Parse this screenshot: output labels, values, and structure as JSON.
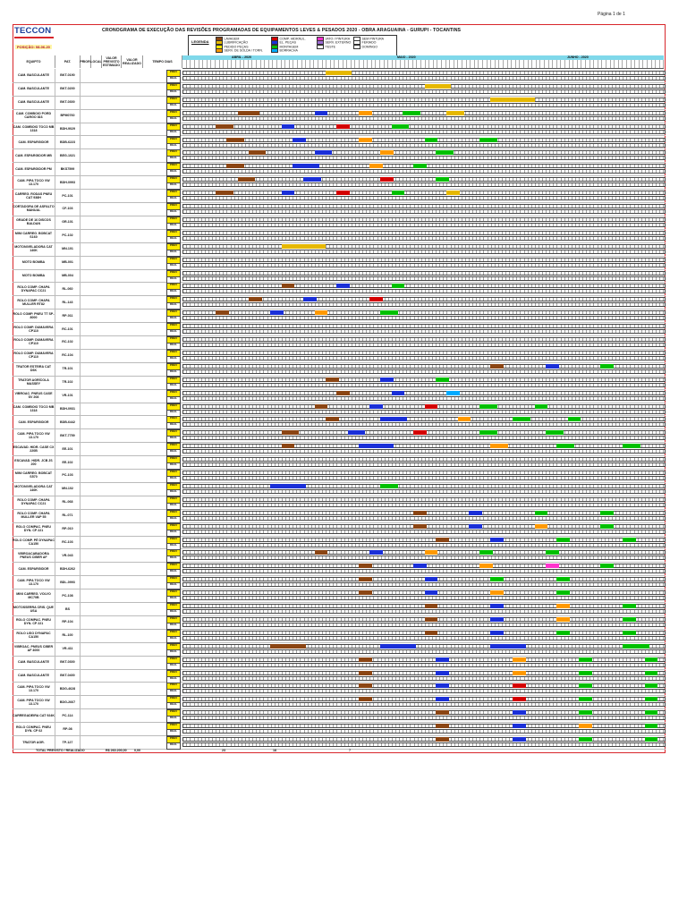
{
  "page_label": "Página 1 de 1",
  "brand": {
    "name": "TECCON"
  },
  "title": "CRONOGRAMA DE EXECUÇÃO DAS REVISÕES PROGRAMADAS DE EQUIPAMENTOS LEVES & PESADOS 2020 - OBRA ARAGUAINA - GURUPI - TOCANTINS",
  "position": "POSIÇÃO: 08-06-20",
  "legend": {
    "title": "LEGENDA",
    "items": [
      {
        "label": "LAVAGEM",
        "color": "#8b4513"
      },
      {
        "label": "LUBRIFICAÇÃO",
        "color": "#e6b800"
      },
      {
        "label": "PEDIDO PEÇAS",
        "color": "#ffe800"
      },
      {
        "label": "SERV. DE SOLDA / TORN.",
        "color": "#ff9900"
      },
      {
        "label": "COMP. HIDRÁUL.",
        "color": "#d40000"
      },
      {
        "label": "EL. PEÇAS",
        "color": "#1a2fd8"
      },
      {
        "label": "MONTAGEM",
        "color": "#00c000"
      },
      {
        "label": "BORRACHA",
        "color": "#00aaff"
      },
      {
        "label": "JATO / PINTURA",
        "color": "#ff33cc"
      },
      {
        "label": "SERV. EXTERNO",
        "color": "#9d6bd6"
      },
      {
        "label": "TESTE",
        "color": "#ffffff"
      },
      {
        "label": "SEM PINTURA",
        "color": "#ffffff"
      },
      {
        "label": "FERIADO",
        "color": "#ffffff"
      },
      {
        "label": "DOMINGO",
        "color": "#ffffff"
      }
    ]
  },
  "columns": [
    "EQUIPTO",
    "PAT.",
    "PRIOR.",
    "LOCAL",
    "VALOR PREVISTO ESTIMADO",
    "VALOR REALIZADO",
    "TEMPO DIAS"
  ],
  "months": [
    "ABRIL - 2020",
    "MAIO - 2020",
    "JUNHO - 2020"
  ],
  "plan_label": "PREV",
  "real_label": "REAL",
  "rows": [
    {
      "eq": "CAM. BASCULANTE",
      "pat": "BKT-0190",
      "blocks": [
        [
          13,
          6,
          "#e6b800"
        ]
      ]
    },
    {
      "eq": "CAM. BASCULANTE",
      "pat": "BKT-0200",
      "blocks": [
        [
          22,
          6,
          "#e6b800"
        ]
      ]
    },
    {
      "eq": "CAM. BASCULANTE",
      "pat": "BKT-0300",
      "blocks": [
        [
          28,
          10,
          "#e6b800"
        ]
      ]
    },
    {
      "eq": "CAM. COMBOIO PORD CARGO 816",
      "pat": "BPM0760",
      "blocks": [
        [
          5,
          5,
          "#8b4513"
        ],
        [
          12,
          3,
          "#1a2fd8"
        ],
        [
          16,
          3,
          "#ff9900"
        ],
        [
          20,
          4,
          "#00c000"
        ],
        [
          24,
          4,
          "#e6b800"
        ]
      ]
    },
    {
      "eq": "CAM. COMBOIO TOCO MB 1318",
      "pat": "BDH-9029",
      "blocks": [
        [
          3,
          4,
          "#8b4513"
        ],
        [
          9,
          3,
          "#1a2fd8"
        ],
        [
          14,
          3,
          "#d40000"
        ],
        [
          19,
          4,
          "#00c000"
        ]
      ]
    },
    {
      "eq": "CAM. ESPARGIDOR",
      "pat": "BDB-6223",
      "blocks": [
        [
          4,
          4,
          "#8b4513"
        ],
        [
          10,
          3,
          "#1a2fd8"
        ],
        [
          16,
          3,
          "#ff9900"
        ],
        [
          22,
          3,
          "#00c000"
        ],
        [
          27,
          4,
          "#00c000"
        ]
      ]
    },
    {
      "eq": "CAM. ESPARGIDOR MB",
      "pat": "BEG-1021",
      "blocks": [
        [
          6,
          4,
          "#8b4513"
        ],
        [
          12,
          4,
          "#1a2fd8"
        ],
        [
          18,
          3,
          "#ff9900"
        ],
        [
          23,
          4,
          "#00c000"
        ]
      ]
    },
    {
      "eq": "CAM. ESPARGIDOR PM",
      "pat": "BKS7599",
      "blocks": [
        [
          4,
          4,
          "#8b4513"
        ],
        [
          10,
          6,
          "#1a2fd8"
        ],
        [
          17,
          3,
          "#ff9900"
        ],
        [
          21,
          3,
          "#00c000"
        ]
      ]
    },
    {
      "eq": "CAM. PIPA TOCO VW 13.170",
      "pat": "BDH-0993",
      "blocks": [
        [
          5,
          4,
          "#8b4513"
        ],
        [
          11,
          4,
          "#1a2fd8"
        ],
        [
          18,
          3,
          "#d40000"
        ],
        [
          23,
          3,
          "#00c000"
        ]
      ]
    },
    {
      "eq": "CARREG. RODAS PNEU CAT 938H",
      "pat": "PC-101",
      "blocks": [
        [
          3,
          4,
          "#8b4513"
        ],
        [
          9,
          3,
          "#1a2fd8"
        ],
        [
          14,
          3,
          "#d40000"
        ],
        [
          19,
          3,
          "#00c000"
        ],
        [
          24,
          3,
          "#e6b800"
        ]
      ]
    },
    {
      "eq": "CORTADORA DE ASFALTO MANUAL",
      "pat": "CF-103",
      "blocks": []
    },
    {
      "eq": "GRADE DE 16 DISCOS BALDAN",
      "pat": "GR-101",
      "blocks": []
    },
    {
      "eq": "MINI CARREG. BOBCAT S160",
      "pat": "PC-102",
      "blocks": []
    },
    {
      "eq": "MOTONIVELADORA CAT 140K",
      "pat": "MN-101",
      "blocks": [
        [
          9,
          10,
          "#e6b800"
        ]
      ]
    },
    {
      "eq": "MOTO BOMBA",
      "pat": "MB-001",
      "blocks": []
    },
    {
      "eq": "MOTO BOMBA",
      "pat": "MB-004",
      "blocks": []
    },
    {
      "eq": "ROLO COMP. CHAPA DYNAPAC CC21",
      "pat": "RL-060",
      "blocks": [
        [
          9,
          3,
          "#8b4513"
        ],
        [
          14,
          3,
          "#1a2fd8"
        ],
        [
          19,
          3,
          "#00c000"
        ]
      ]
    },
    {
      "eq": "ROLO COMP. CHAPA MULLER RT82",
      "pat": "RL-143",
      "blocks": [
        [
          6,
          3,
          "#8b4513"
        ],
        [
          11,
          3,
          "#1a2fd8"
        ],
        [
          17,
          3,
          "#d40000"
        ]
      ]
    },
    {
      "eq": "ROLO COMP. PNEU TT SP-8000",
      "pat": "RP-011",
      "blocks": [
        [
          3,
          3,
          "#8b4513"
        ],
        [
          8,
          3,
          "#1a2fd8"
        ],
        [
          12,
          3,
          "#ff9900"
        ],
        [
          18,
          4,
          "#00c000"
        ]
      ]
    },
    {
      "eq": "ROLO COMP. DUMAVERA CP110",
      "pat": "RC-101",
      "blocks": []
    },
    {
      "eq": "ROLO COMP. DUMAVERA CP110",
      "pat": "RC-102",
      "blocks": []
    },
    {
      "eq": "ROLO COMP. DUMAVERA CP110",
      "pat": "RC-104",
      "blocks": []
    },
    {
      "eq": "TRATOR ESTEIRA CAT D6K",
      "pat": "TR-101",
      "blocks": [
        [
          28,
          3,
          "#8b4513"
        ],
        [
          33,
          3,
          "#1a2fd8"
        ],
        [
          38,
          3,
          "#00c000"
        ]
      ]
    },
    {
      "eq": "TRATOR AGRÍCOLA MASSEY",
      "pat": "TR-102",
      "blocks": [
        [
          13,
          3,
          "#8b4513"
        ],
        [
          18,
          3,
          "#1a2fd8"
        ],
        [
          23,
          3,
          "#00c000"
        ]
      ]
    },
    {
      "eq": "VIBROAC. PNEUS CASE SV 208",
      "pat": "VR-101",
      "blocks": [
        [
          14,
          3,
          "#8b4513"
        ],
        [
          19,
          3,
          "#1a2fd8"
        ],
        [
          24,
          3,
          "#00aaff"
        ]
      ]
    },
    {
      "eq": "CAM. COMBOIO TOCO MB 1318",
      "pat": "BDH-0931",
      "blocks": [
        [
          12,
          3,
          "#8b4513"
        ],
        [
          17,
          3,
          "#1a2fd8"
        ],
        [
          22,
          3,
          "#d40000"
        ],
        [
          27,
          4,
          "#00c000"
        ],
        [
          32,
          3,
          "#00c000"
        ]
      ]
    },
    {
      "eq": "CAM. ESPARGIDOR",
      "pat": "BDB-6442",
      "blocks": [
        [
          13,
          3,
          "#8b4513"
        ],
        [
          18,
          6,
          "#1a2fd8"
        ],
        [
          25,
          3,
          "#ff9900"
        ],
        [
          30,
          4,
          "#00c000"
        ],
        [
          35,
          3,
          "#00c000"
        ]
      ]
    },
    {
      "eq": "CAM. PIPA TOCO VW 13.170",
      "pat": "BKT-7759",
      "blocks": [
        [
          9,
          4,
          "#8b4513"
        ],
        [
          15,
          4,
          "#1a2fd8"
        ],
        [
          21,
          3,
          "#d40000"
        ],
        [
          27,
          4,
          "#00c000"
        ],
        [
          33,
          4,
          "#00c000"
        ]
      ]
    },
    {
      "eq": "ESCAVAD. HIDR. CASE CX 220B",
      "pat": "EE-101",
      "blocks": [
        [
          9,
          3,
          "#8b4513"
        ],
        [
          16,
          8,
          "#1a2fd8"
        ],
        [
          28,
          4,
          "#ff9900"
        ],
        [
          34,
          4,
          "#00c000"
        ],
        [
          40,
          4,
          "#00c000"
        ]
      ]
    },
    {
      "eq": "ESCAVAD. HIDR. JCB JS 200",
      "pat": "EE-102",
      "blocks": []
    },
    {
      "eq": "MINI CARREG. BOBCAT S570",
      "pat": "PC-103",
      "blocks": []
    },
    {
      "eq": "MOTONIVELADORA CAT 140K",
      "pat": "MN-102",
      "blocks": [
        [
          8,
          8,
          "#1a2fd8"
        ],
        [
          18,
          4,
          "#00c000"
        ]
      ]
    },
    {
      "eq": "ROLO COMP. CHAPA DYNAPAC CC21",
      "pat": "RL-068",
      "blocks": []
    },
    {
      "eq": "ROLO COMP. CHAPA MULLER VAP 55",
      "pat": "RL-071",
      "blocks": [
        [
          21,
          3,
          "#8b4513"
        ],
        [
          26,
          3,
          "#1a2fd8"
        ],
        [
          32,
          3,
          "#00c000"
        ],
        [
          38,
          3,
          "#00c000"
        ]
      ]
    },
    {
      "eq": "ROLO COMPAC. PNEU DYN. CP 221",
      "pat": "RP-010",
      "blocks": [
        [
          21,
          3,
          "#8b4513"
        ],
        [
          26,
          3,
          "#1a2fd8"
        ],
        [
          32,
          3,
          "#ff9900"
        ],
        [
          38,
          3,
          "#00c000"
        ]
      ]
    },
    {
      "eq": "ROLO COMP. PÉ DYNAPAC CA150",
      "pat": "RC-103",
      "blocks": [
        [
          23,
          3,
          "#8b4513"
        ],
        [
          28,
          3,
          "#1a2fd8"
        ],
        [
          34,
          3,
          "#00c000"
        ],
        [
          40,
          3,
          "#00c000"
        ]
      ]
    },
    {
      "eq": "VIBROACABADORA PNEUS CIBER AF",
      "pat": "VR-043",
      "blocks": [
        [
          12,
          3,
          "#8b4513"
        ],
        [
          17,
          3,
          "#1a2fd8"
        ],
        [
          22,
          3,
          "#ff9900"
        ],
        [
          27,
          3,
          "#00c000"
        ],
        [
          33,
          3,
          "#00c000"
        ]
      ]
    },
    {
      "eq": "CAM. ESPARGIDOR",
      "pat": "BDH-6262",
      "blocks": [
        [
          16,
          3,
          "#8b4513"
        ],
        [
          21,
          3,
          "#1a2fd8"
        ],
        [
          27,
          3,
          "#ff9900"
        ],
        [
          33,
          3,
          "#ff33cc"
        ],
        [
          38,
          3,
          "#00c000"
        ]
      ]
    },
    {
      "eq": "CAM. PIPA TOCO VW 13.170",
      "pat": "BDL-0993",
      "blocks": [
        [
          16,
          3,
          "#8b4513"
        ],
        [
          22,
          3,
          "#1a2fd8"
        ],
        [
          28,
          3,
          "#00c000"
        ],
        [
          34,
          3,
          "#00c000"
        ]
      ]
    },
    {
      "eq": "MINI CARREG. VOLVO MC70B",
      "pat": "PC-108",
      "blocks": [
        [
          16,
          3,
          "#8b4513"
        ],
        [
          22,
          3,
          "#1a2fd8"
        ],
        [
          28,
          3,
          "#ff9900"
        ],
        [
          34,
          3,
          "#00c000"
        ]
      ]
    },
    {
      "eq": "MOTOSSERRA CRIS. QUE USA",
      "pat": "BS",
      "blocks": [
        [
          22,
          3,
          "#8b4513"
        ],
        [
          28,
          3,
          "#1a2fd8"
        ],
        [
          34,
          3,
          "#ff9900"
        ],
        [
          40,
          3,
          "#00c000"
        ]
      ]
    },
    {
      "eq": "ROLO COMPAC. PNEU DYN. CP 221",
      "pat": "RP-104",
      "blocks": [
        [
          22,
          3,
          "#8b4513"
        ],
        [
          28,
          3,
          "#1a2fd8"
        ],
        [
          34,
          3,
          "#ff9900"
        ],
        [
          40,
          3,
          "#00c000"
        ]
      ]
    },
    {
      "eq": "ROLO LISO DYNAPAC CA150",
      "pat": "RL-100",
      "blocks": [
        [
          22,
          3,
          "#8b4513"
        ],
        [
          28,
          3,
          "#1a2fd8"
        ],
        [
          34,
          3,
          "#00c000"
        ],
        [
          40,
          3,
          "#00c000"
        ]
      ]
    },
    {
      "eq": "VIBROAC. PNEUS CIBER AF 4000",
      "pat": "VR-411",
      "blocks": [
        [
          8,
          8,
          "#8b4513"
        ],
        [
          18,
          8,
          "#1a2fd8"
        ],
        [
          28,
          8,
          "#1a2fd8"
        ],
        [
          40,
          6,
          "#00c000"
        ]
      ]
    },
    {
      "eq": "CAM. BASCULANTE",
      "pat": "BKT-0300",
      "blocks": [
        [
          16,
          3,
          "#8b4513"
        ],
        [
          23,
          3,
          "#1a2fd8"
        ],
        [
          30,
          3,
          "#ff9900"
        ],
        [
          36,
          3,
          "#00c000"
        ],
        [
          42,
          3,
          "#00c000"
        ]
      ]
    },
    {
      "eq": "CAM. BASCULANTE",
      "pat": "BKT-0400",
      "blocks": [
        [
          16,
          3,
          "#8b4513"
        ],
        [
          23,
          3,
          "#1a2fd8"
        ],
        [
          30,
          3,
          "#ff9900"
        ],
        [
          36,
          3,
          "#00c000"
        ],
        [
          42,
          3,
          "#00c000"
        ]
      ]
    },
    {
      "eq": "CAM. PIPA TOCO VW 13.170",
      "pat": "BDG-4628",
      "blocks": [
        [
          16,
          3,
          "#8b4513"
        ],
        [
          23,
          3,
          "#1a2fd8"
        ],
        [
          30,
          3,
          "#d40000"
        ],
        [
          36,
          3,
          "#00c000"
        ],
        [
          42,
          3,
          "#00c000"
        ]
      ]
    },
    {
      "eq": "CAM. PIPA TOCO VW 13.170",
      "pat": "BDG-2667",
      "blocks": [
        [
          16,
          3,
          "#8b4513"
        ],
        [
          23,
          3,
          "#1a2fd8"
        ],
        [
          30,
          3,
          "#d40000"
        ],
        [
          36,
          3,
          "#00c000"
        ],
        [
          42,
          3,
          "#00c000"
        ]
      ]
    },
    {
      "eq": "CARREGADEIRA CAT 924K",
      "pat": "PC-114",
      "blocks": [
        [
          23,
          3,
          "#8b4513"
        ],
        [
          30,
          3,
          "#1a2fd8"
        ],
        [
          36,
          3,
          "#00c000"
        ],
        [
          42,
          3,
          "#00c000"
        ]
      ]
    },
    {
      "eq": "ROLO COMPAC. PNEU DYN. CP 02",
      "pat": "RP-08",
      "blocks": [
        [
          23,
          3,
          "#8b4513"
        ],
        [
          30,
          3,
          "#1a2fd8"
        ],
        [
          36,
          3,
          "#ff9900"
        ],
        [
          42,
          3,
          "#00c000"
        ]
      ]
    },
    {
      "eq": "TRATOR AGR.",
      "pat": "TP-127",
      "blocks": [
        [
          23,
          3,
          "#8b4513"
        ],
        [
          30,
          3,
          "#1a2fd8"
        ],
        [
          36,
          3,
          "#00c000"
        ],
        [
          42,
          3,
          "#00c000"
        ]
      ]
    }
  ],
  "totals": {
    "label": "TOTAL PREVISTO / REALIZADO",
    "value": "R$ 260.200,00",
    "realizado": "0,00",
    "andamento": "23",
    "aguardando": "18",
    "concluido": "7"
  }
}
